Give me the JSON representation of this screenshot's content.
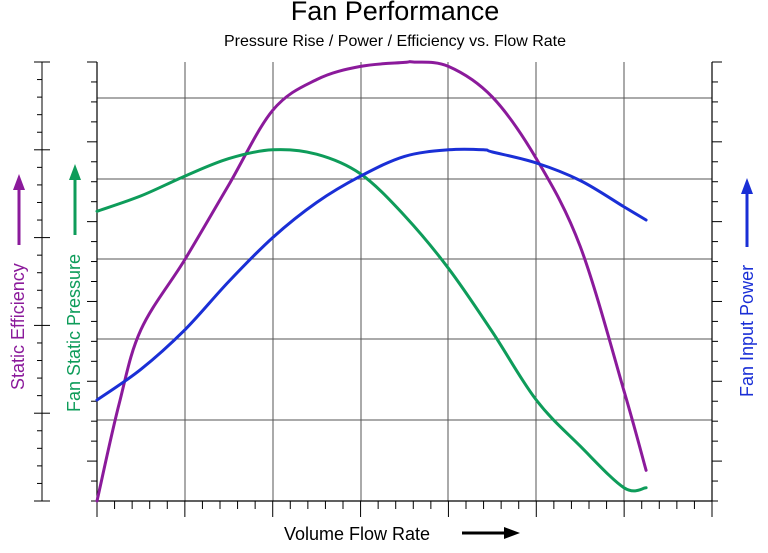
{
  "chart_data": {
    "type": "line",
    "title": "Fan Performance",
    "subtitle": "Pressure Rise / Power / Efficiency vs. Flow Rate",
    "xlabel": "Volume Flow Rate",
    "xlim": [
      0,
      7
    ],
    "ylim": [
      0,
      10
    ],
    "x_tick_labels": false,
    "y_tick_labels": false,
    "grid": true,
    "axes_left": [
      {
        "label": "Static Efficiency",
        "color": "#8B1A9B",
        "series": "Static Efficiency"
      },
      {
        "label": "Fan Static Pressure",
        "color": "#0E9C5A",
        "series": "Fan Static Pressure"
      }
    ],
    "axis_right": {
      "label": "Fan Input Power",
      "color": "#1A2FD6",
      "series": "Fan Input Power"
    },
    "series": [
      {
        "name": "Static Efficiency",
        "color": "#8B1A9B",
        "x": [
          0,
          0.25,
          0.5,
          1.0,
          1.5,
          2.0,
          2.5,
          3.0,
          3.5,
          3.6,
          4.0,
          4.5,
          5.0,
          5.5,
          6.0,
          6.25
        ],
        "y": [
          0,
          2.2,
          3.9,
          5.5,
          7.2,
          8.9,
          9.6,
          9.9,
          9.99,
          10.0,
          9.9,
          9.2,
          7.8,
          5.8,
          2.5,
          0.7
        ]
      },
      {
        "name": "Fan Static Pressure",
        "color": "#0E9C5A",
        "x": [
          0,
          0.5,
          1.0,
          1.5,
          2.0,
          2.5,
          3.0,
          3.5,
          4.0,
          4.5,
          5.0,
          5.5,
          6.0,
          6.25
        ],
        "y": [
          6.6,
          6.95,
          7.4,
          7.8,
          8.0,
          7.9,
          7.45,
          6.5,
          5.3,
          3.85,
          2.3,
          1.25,
          0.3,
          0.3
        ]
      },
      {
        "name": "Fan Input Power",
        "color": "#1A2FD6",
        "x": [
          0,
          0.5,
          1.0,
          1.5,
          2.0,
          2.5,
          3.0,
          3.5,
          4.0,
          4.4,
          4.5,
          5.0,
          5.5,
          6.0,
          6.25
        ],
        "y": [
          2.3,
          3.0,
          3.9,
          5.0,
          6.0,
          6.8,
          7.4,
          7.85,
          8.0,
          8.0,
          7.95,
          7.7,
          7.3,
          6.7,
          6.4
        ]
      }
    ]
  }
}
